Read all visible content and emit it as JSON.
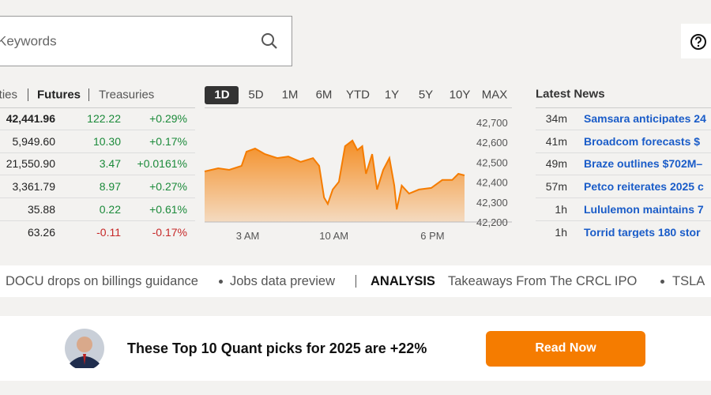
{
  "search": {
    "placeholder": "Keywords"
  },
  "market_tabs": {
    "items": [
      "Equities",
      "Futures",
      "Treasuries"
    ],
    "active": 1
  },
  "quotes": {
    "rows": [
      [
        "42,441.96",
        "122.22",
        "+0.29%"
      ],
      [
        "5,949.60",
        "10.30",
        "+0.17%"
      ],
      [
        "21,550.90",
        "3.47",
        "+0.0161%"
      ],
      [
        "3,361.79",
        "8.97",
        "+0.27%"
      ],
      [
        "35.88",
        "0.22",
        "+0.61%"
      ],
      [
        "63.26",
        "-0.11",
        "-0.17%"
      ]
    ]
  },
  "range_tabs": {
    "items": [
      "1D",
      "5D",
      "1M",
      "6M",
      "YTD",
      "1Y",
      "5Y",
      "10Y",
      "MAX"
    ],
    "active": 0
  },
  "chart_data": {
    "type": "area",
    "color": "#f57c00",
    "x": [
      -0.5,
      0.6,
      1.5,
      2.5,
      2.9,
      3.6,
      4.4,
      5.4,
      6.3,
      7.3,
      8.3,
      8.8,
      9.2,
      9.5,
      9.9,
      10.4,
      10.9,
      11.5,
      11.9,
      12.3,
      12.6,
      13.1,
      13.5,
      14.0,
      14.5,
      14.9,
      15.1,
      15.5,
      16.1,
      16.9,
      17.9,
      18.8,
      19.6,
      20.1,
      20.6
    ],
    "values": [
      42454,
      42470,
      42462,
      42482,
      42553,
      42569,
      42541,
      42521,
      42529,
      42502,
      42521,
      42482,
      42323,
      42291,
      42363,
      42402,
      42581,
      42609,
      42561,
      42581,
      42442,
      42541,
      42363,
      42462,
      42521,
      42383,
      42263,
      42383,
      42343,
      42363,
      42371,
      42411,
      42411,
      42442,
      42434
    ],
    "xlim": [
      -0.5,
      20.6
    ],
    "ylim": [
      42200,
      42700
    ],
    "xticks": [
      {
        "value": 3,
        "label": "3 AM"
      },
      {
        "value": 10,
        "label": "10 AM"
      },
      {
        "value": 18,
        "label": "6 PM"
      }
    ],
    "yticks": [
      {
        "value": 42700,
        "label": "42,700"
      },
      {
        "value": 42600,
        "label": "42,600"
      },
      {
        "value": 42500,
        "label": "42,500"
      },
      {
        "value": 42400,
        "label": "42,400"
      },
      {
        "value": 42300,
        "label": "42,300"
      },
      {
        "value": 42200,
        "label": "42,200"
      }
    ]
  },
  "news": {
    "title": "Latest News",
    "items": [
      {
        "time": "34m",
        "headline": "Samsara anticipates 24"
      },
      {
        "time": "41m",
        "headline": "Broadcom forecasts $"
      },
      {
        "time": "49m",
        "headline": "Braze outlines $702M–"
      },
      {
        "time": "57m",
        "headline": "Petco reiterates 2025 c"
      },
      {
        "time": "1h",
        "headline": "Lululemon maintains 7"
      },
      {
        "time": "1h",
        "headline": "Torrid targets 180 stor"
      }
    ]
  },
  "ticker": {
    "items": [
      "DOCU drops on billings guidance",
      "Jobs data preview"
    ],
    "label": "ANALYSIS",
    "analysis": [
      "Takeaways From The CRCL IPO",
      "TSLA"
    ]
  },
  "promo": {
    "headline": "These Top 10 Quant picks for 2025 are +22%",
    "button": "Read Now"
  }
}
